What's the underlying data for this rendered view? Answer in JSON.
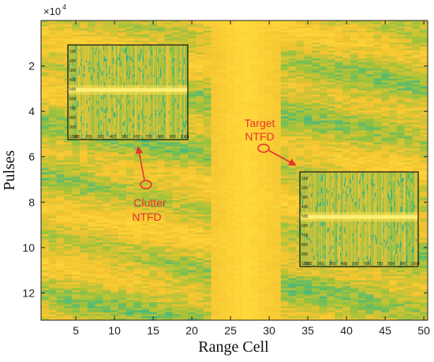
{
  "chart_data": {
    "type": "heatmap",
    "xlabel": "Range Cell",
    "ylabel": "Pulses",
    "y_exponent_label": "×10",
    "y_exponent_power": "4",
    "x_ticks": [
      5,
      10,
      15,
      20,
      25,
      30,
      35,
      40,
      45,
      50
    ],
    "x_tick_labels": [
      "5",
      "10",
      "15",
      "20",
      "25",
      "30",
      "35",
      "40",
      "45",
      "50"
    ],
    "xlim": [
      0.5,
      50.5
    ],
    "y_ticks": [
      2,
      4,
      6,
      8,
      10,
      12
    ],
    "y_tick_labels": [
      "2",
      "4",
      "6",
      "8",
      "10",
      "12"
    ],
    "ylim": [
      0,
      13.2
    ],
    "y_direction": "reversed",
    "colormap": [
      "#1fb39a",
      "#9ac23c",
      "#f4c430",
      "#ffd83a"
    ],
    "bright_band_range_cells": [
      23,
      31
    ],
    "insets": [
      {
        "ticks_x": [
          "100",
          "200",
          "300",
          "400",
          "500",
          "600",
          "700",
          "800",
          "900",
          "1000"
        ],
        "ticks_y": [
          "100",
          "200",
          "300",
          "400",
          "500",
          "600",
          "700",
          "800",
          "900",
          "1000"
        ],
        "bright_row_value": 500
      },
      {
        "ticks_x": [
          "100",
          "200",
          "300",
          "400",
          "500",
          "600",
          "700",
          "800",
          "900",
          "1000"
        ],
        "ticks_y": [
          "100",
          "200",
          "300",
          "400",
          "500",
          "600",
          "700",
          "800",
          "900",
          "1000"
        ],
        "bright_row_value": 500
      }
    ],
    "annotations": [
      {
        "line1": "Target",
        "line2": "NTFD",
        "color": "#e8322b"
      },
      {
        "line1": "Clutter",
        "line2": "NTFD",
        "color": "#e8322b"
      }
    ]
  }
}
